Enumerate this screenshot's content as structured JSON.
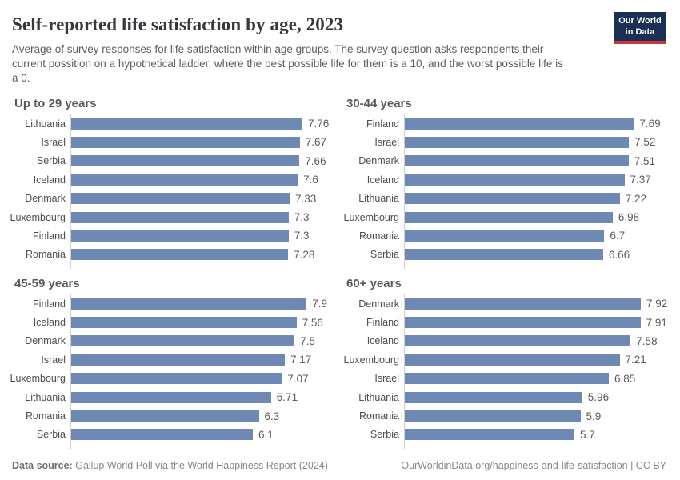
{
  "header": {
    "title": "Self-reported life satisfaction by age, 2023",
    "subtitle": "Average of survey responses for life satisfaction within age groups. The survey question asks respondents their current possition on a hypothetical ladder, where the best possible life for them is a 10, and the worst possible life is a 0.",
    "logo": {
      "line1": "Our World",
      "line2": "in Data"
    }
  },
  "colors": {
    "bar": "#6e8ab4",
    "axis_line": "#cfcfcf",
    "logo_navy": "#1b2e54",
    "logo_red": "#cf3438"
  },
  "chart_data": [
    {
      "type": "bar",
      "orientation": "horizontal",
      "title": "Up to 29 years",
      "categories": [
        "Lithuania",
        "Israel",
        "Serbia",
        "Iceland",
        "Denmark",
        "Luxembourg",
        "Finland",
        "Romania"
      ],
      "values": [
        7.76,
        7.67,
        7.66,
        7.6,
        7.33,
        7.3,
        7.3,
        7.28
      ],
      "value_labels": [
        "7.76",
        "7.67",
        "7.66",
        "7.6",
        "7.33",
        "7.3",
        "7.3",
        "7.28"
      ],
      "xlim": [
        0,
        8
      ],
      "grid": false,
      "bar_color": "#6e8ab4"
    },
    {
      "type": "bar",
      "orientation": "horizontal",
      "title": "30-44 years",
      "categories": [
        "Finland",
        "Israel",
        "Denmark",
        "Iceland",
        "Lithuania",
        "Luxembourg",
        "Romania",
        "Serbia"
      ],
      "values": [
        7.69,
        7.52,
        7.51,
        7.37,
        7.22,
        6.98,
        6.7,
        6.66
      ],
      "value_labels": [
        "7.69",
        "7.52",
        "7.51",
        "7.37",
        "7.22",
        "6.98",
        "6.7",
        "6.66"
      ],
      "xlim": [
        0,
        8
      ],
      "grid": false,
      "bar_color": "#6e8ab4"
    },
    {
      "type": "bar",
      "orientation": "horizontal",
      "title": "45-59 years",
      "categories": [
        "Finland",
        "Iceland",
        "Denmark",
        "Israel",
        "Luxembourg",
        "Lithuania",
        "Romania",
        "Serbia"
      ],
      "values": [
        7.9,
        7.56,
        7.5,
        7.17,
        7.07,
        6.71,
        6.3,
        6.1
      ],
      "value_labels": [
        "7.9",
        "7.56",
        "7.5",
        "7.17",
        "7.07",
        "6.71",
        "6.3",
        "6.1"
      ],
      "xlim": [
        0,
        8
      ],
      "grid": false,
      "bar_color": "#6e8ab4"
    },
    {
      "type": "bar",
      "orientation": "horizontal",
      "title": "60+ years",
      "categories": [
        "Denmark",
        "Finland",
        "Iceland",
        "Luxembourg",
        "Israel",
        "Lithuania",
        "Romania",
        "Serbia"
      ],
      "values": [
        7.92,
        7.91,
        7.58,
        7.21,
        6.85,
        5.96,
        5.9,
        5.7
      ],
      "value_labels": [
        "7.92",
        "7.91",
        "7.58",
        "7.21",
        "6.85",
        "5.96",
        "5.9",
        "5.7"
      ],
      "xlim": [
        0,
        8
      ],
      "grid": false,
      "bar_color": "#6e8ab4"
    }
  ],
  "footer": {
    "source_label": "Data source:",
    "source_text": "Gallup World Poll via the World Happiness Report (2024)",
    "attribution": "OurWorldinData.org/happiness-and-life-satisfaction | CC BY"
  }
}
